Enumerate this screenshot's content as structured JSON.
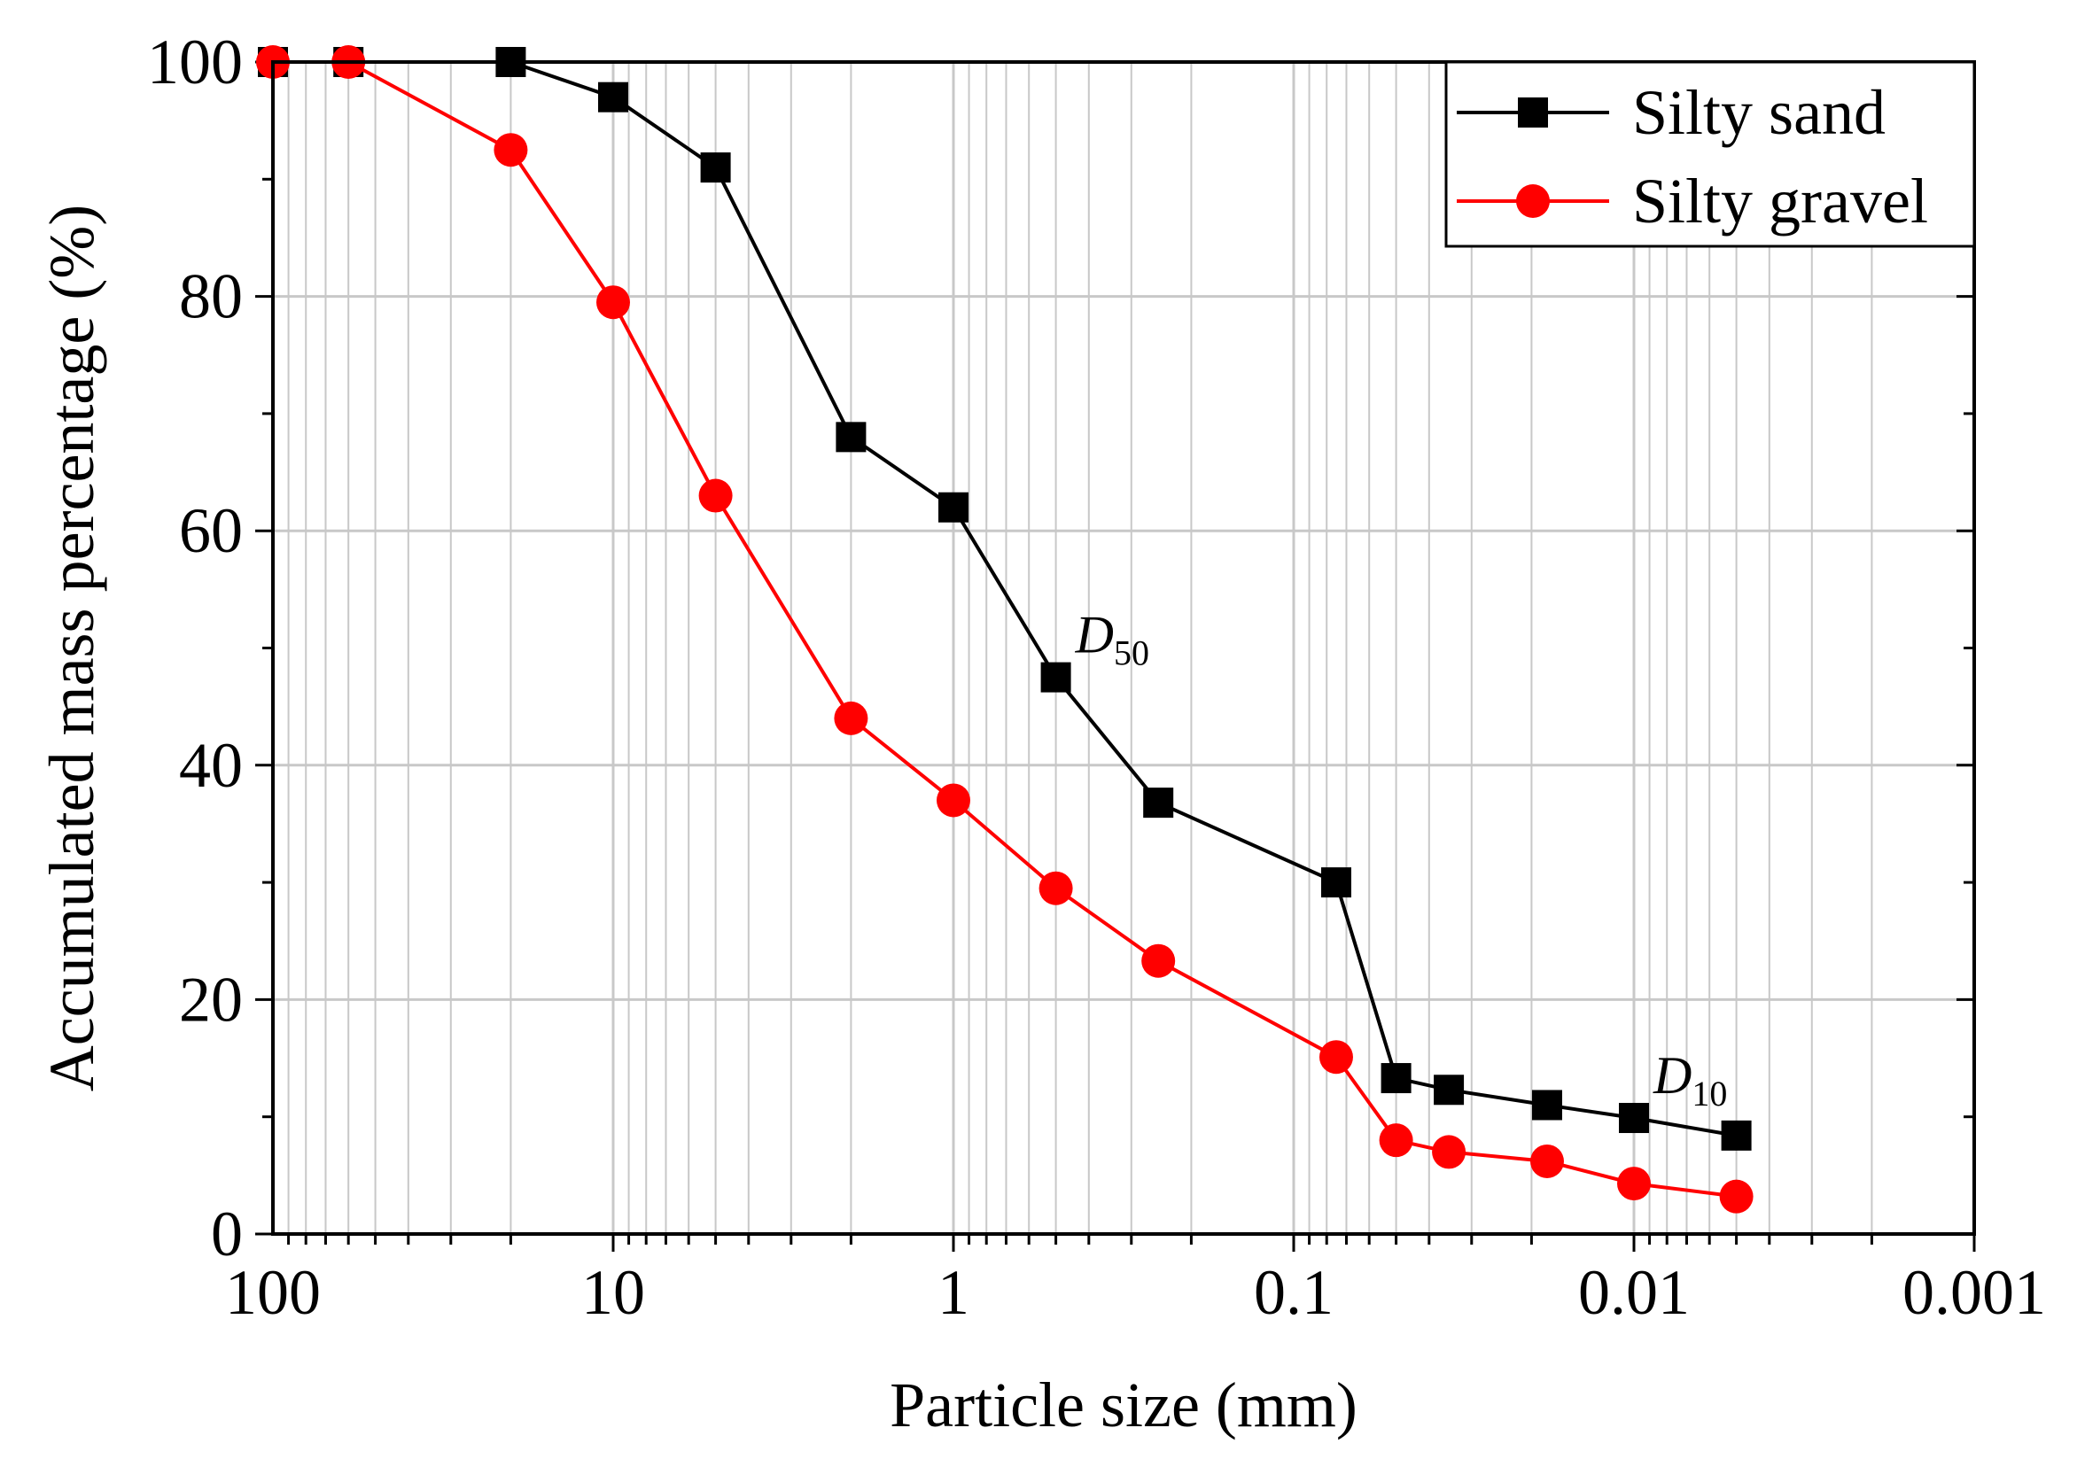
{
  "chart_data": {
    "type": "line",
    "xlabel": "Particle size (mm)",
    "ylabel": "Accumulated mass percentage (%)",
    "x_scale": "log",
    "x_reversed": true,
    "xlim": [
      100,
      0.001
    ],
    "ylim": [
      0,
      100
    ],
    "x_ticks": [
      100,
      10,
      1,
      0.1,
      0.01,
      0.001
    ],
    "x_tick_labels": [
      "100",
      "10",
      "1",
      "0.1",
      "0.01",
      "0.001"
    ],
    "y_ticks": [
      0,
      20,
      40,
      60,
      80,
      100
    ],
    "y_tick_labels": [
      "0",
      "20",
      "40",
      "60",
      "80",
      "100"
    ],
    "grid": true,
    "legend_position": "top-right",
    "series": [
      {
        "name": "Silty sand",
        "color": "#000000",
        "marker": "square",
        "x": [
          100,
          60,
          20,
          10,
          5,
          2,
          1,
          0.5,
          0.25,
          0.075,
          0.05,
          0.035,
          0.018,
          0.01,
          0.005
        ],
        "y": [
          100,
          100,
          100,
          97,
          91,
          68,
          62,
          47.5,
          36.8,
          30,
          13.3,
          12.3,
          11,
          9.9,
          8.4
        ]
      },
      {
        "name": "Silty gravel",
        "color": "#ff0000",
        "marker": "circle",
        "x": [
          100,
          60,
          20,
          10,
          5,
          2,
          1,
          0.5,
          0.25,
          0.075,
          0.05,
          0.035,
          0.018,
          0.01,
          0.005
        ],
        "y": [
          100,
          100,
          92.5,
          79.5,
          63,
          44,
          37,
          29.5,
          23.3,
          15.1,
          8,
          7,
          6.2,
          4.3,
          3.2
        ]
      }
    ],
    "annotations": [
      {
        "letter": "D",
        "sub": "50",
        "x": 0.5,
        "y": 47.5
      },
      {
        "letter": "D",
        "sub": "10",
        "x": 0.01,
        "y": 9.9
      }
    ]
  }
}
